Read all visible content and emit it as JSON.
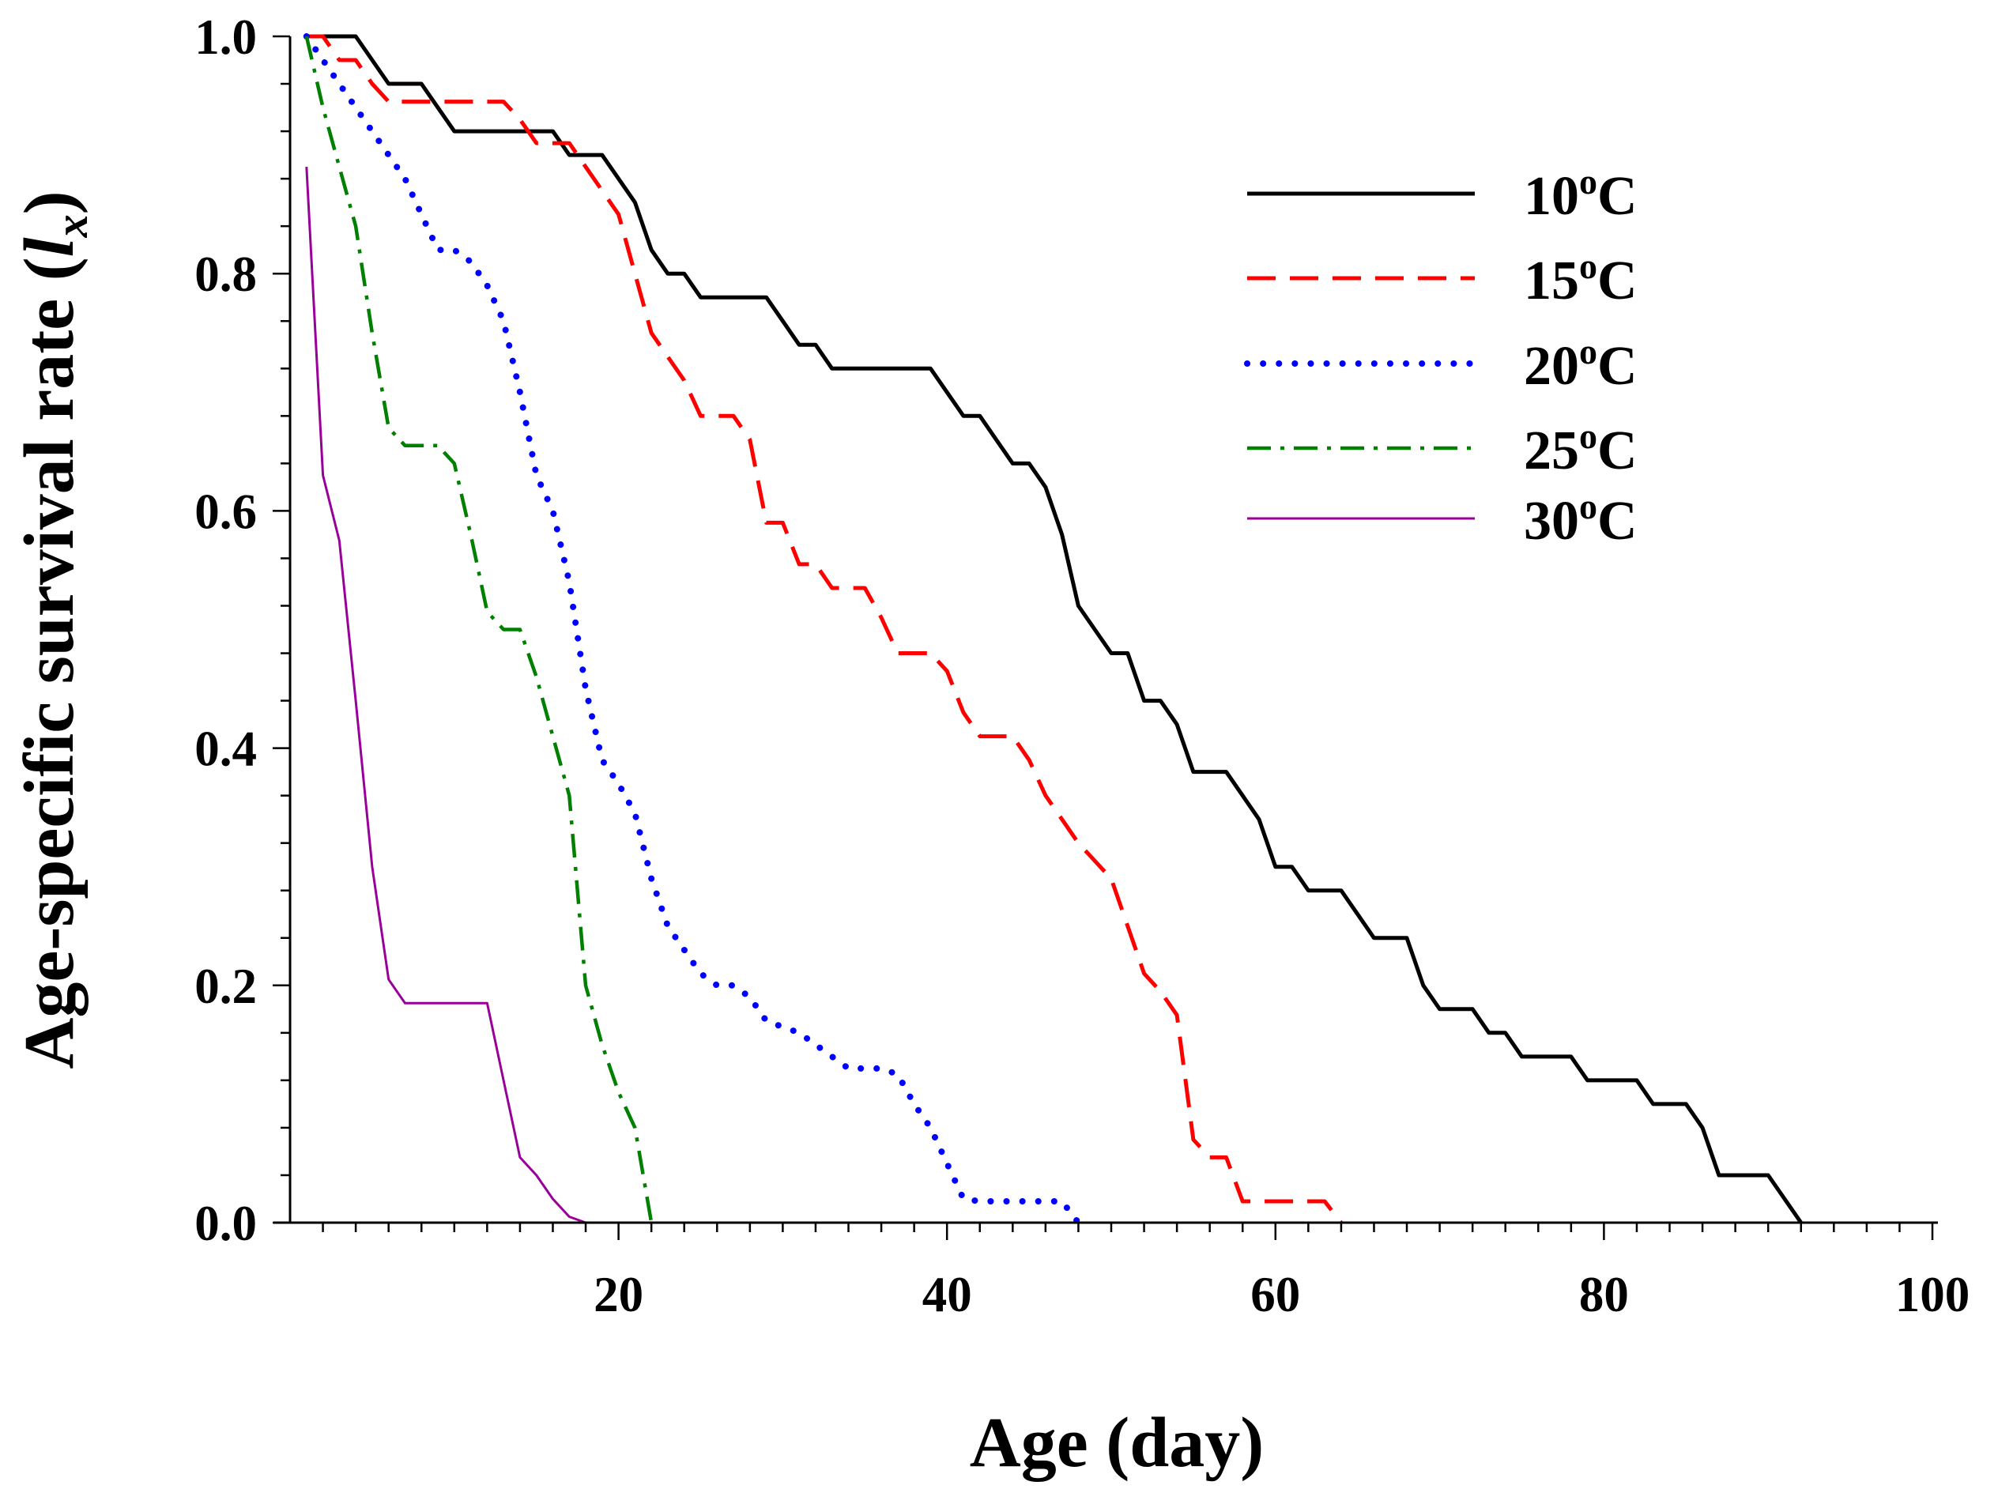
{
  "chart_data": {
    "type": "line",
    "title": "",
    "xlabel": "Age (day)",
    "ylabel_main": "Age-specific survival rate (",
    "ylabel_var": "l",
    "ylabel_sub": "x",
    "ylabel_end": ")",
    "xlim": [
      0,
      100
    ],
    "ylim": [
      0,
      1.0
    ],
    "xticks": [
      20,
      40,
      60,
      80,
      100
    ],
    "xtick_labels": [
      "20",
      "40",
      "60",
      "80",
      "100"
    ],
    "xminor_step": 2,
    "yticks": [
      0,
      0.2,
      0.4,
      0.6,
      0.8,
      1.0
    ],
    "ytick_labels": [
      "0.0",
      "0.2",
      "0.4",
      "0.6",
      "0.8",
      "1.0"
    ],
    "yminor_step": 0.04,
    "legend_position": "top-right",
    "series": [
      {
        "name": "10°C",
        "label_num": "10",
        "label_deg": "o",
        "label_unit": "C",
        "color": "#000000",
        "style": "solid",
        "x": [
          1,
          4,
          6,
          8,
          9,
          10,
          11,
          12,
          13,
          15,
          16,
          17,
          18,
          19,
          20,
          21,
          22,
          23,
          24,
          25,
          26,
          28,
          29,
          30,
          31,
          32,
          33,
          34,
          35,
          37,
          38,
          39,
          40,
          41,
          42,
          43,
          44,
          45,
          46,
          47,
          48,
          49,
          50,
          51,
          52,
          53,
          54,
          55,
          56,
          57,
          58,
          59,
          60,
          61,
          62,
          63,
          64,
          65,
          66,
          67,
          68,
          69,
          70,
          71,
          72,
          73,
          74,
          75,
          76,
          77,
          78,
          79,
          80,
          81,
          82,
          83,
          84,
          85,
          86,
          87,
          88,
          89,
          90,
          91,
          92
        ],
        "y": [
          1.0,
          1.0,
          0.96,
          0.96,
          0.94,
          0.92,
          0.92,
          0.92,
          0.92,
          0.92,
          0.92,
          0.9,
          0.9,
          0.9,
          0.88,
          0.86,
          0.82,
          0.8,
          0.8,
          0.78,
          0.78,
          0.78,
          0.78,
          0.76,
          0.74,
          0.74,
          0.72,
          0.72,
          0.72,
          0.72,
          0.72,
          0.72,
          0.7,
          0.68,
          0.68,
          0.66,
          0.64,
          0.64,
          0.62,
          0.58,
          0.52,
          0.5,
          0.48,
          0.48,
          0.44,
          0.44,
          0.42,
          0.38,
          0.38,
          0.38,
          0.36,
          0.34,
          0.3,
          0.3,
          0.28,
          0.28,
          0.28,
          0.26,
          0.24,
          0.24,
          0.24,
          0.2,
          0.18,
          0.18,
          0.18,
          0.16,
          0.16,
          0.14,
          0.14,
          0.14,
          0.14,
          0.12,
          0.12,
          0.12,
          0.12,
          0.1,
          0.1,
          0.1,
          0.08,
          0.04,
          0.04,
          0.04,
          0.04,
          0.02,
          0.0
        ]
      },
      {
        "name": "15°C",
        "label_num": "15",
        "label_deg": "o",
        "label_unit": "C",
        "color": "#ff0000",
        "style": "dashed",
        "x": [
          1,
          2,
          3,
          4,
          5,
          6,
          7,
          8,
          9,
          10,
          11,
          12,
          13,
          14,
          15,
          16,
          17,
          18,
          19,
          20,
          21,
          22,
          23,
          24,
          25,
          26,
          27,
          28,
          29,
          30,
          31,
          32,
          33,
          34,
          35,
          36,
          37,
          38,
          39,
          40,
          41,
          42,
          43,
          44,
          45,
          46,
          47,
          48,
          49,
          50,
          51,
          52,
          53,
          54,
          55,
          56,
          57,
          58,
          59,
          60,
          61,
          62,
          63,
          64
        ],
        "y": [
          1.0,
          1.0,
          0.98,
          0.98,
          0.96,
          0.945,
          0.945,
          0.945,
          0.945,
          0.945,
          0.945,
          0.945,
          0.945,
          0.93,
          0.91,
          0.91,
          0.91,
          0.89,
          0.87,
          0.85,
          0.8,
          0.75,
          0.73,
          0.71,
          0.68,
          0.68,
          0.68,
          0.66,
          0.59,
          0.59,
          0.555,
          0.555,
          0.535,
          0.535,
          0.535,
          0.51,
          0.48,
          0.48,
          0.48,
          0.465,
          0.43,
          0.41,
          0.41,
          0.41,
          0.39,
          0.36,
          0.34,
          0.32,
          0.305,
          0.29,
          0.25,
          0.21,
          0.195,
          0.175,
          0.07,
          0.055,
          0.055,
          0.018,
          0.018,
          0.018,
          0.018,
          0.018,
          0.018,
          0.0
        ]
      },
      {
        "name": "20°C",
        "label_num": "20",
        "label_deg": "o",
        "label_unit": "C",
        "color": "#0000ff",
        "style": "dotted",
        "x": [
          1,
          2,
          3,
          4,
          5,
          6,
          7,
          8,
          9,
          10,
          11,
          12,
          13,
          14,
          15,
          16,
          17,
          18,
          19,
          20,
          21,
          22,
          23,
          24,
          25,
          26,
          27,
          28,
          29,
          30,
          31,
          32,
          33,
          34,
          35,
          36,
          37,
          38,
          39,
          40,
          41,
          42,
          43,
          44,
          45,
          46,
          47,
          48
        ],
        "y": [
          1.0,
          0.98,
          0.96,
          0.94,
          0.92,
          0.9,
          0.88,
          0.85,
          0.82,
          0.82,
          0.81,
          0.79,
          0.76,
          0.7,
          0.63,
          0.6,
          0.54,
          0.45,
          0.39,
          0.37,
          0.345,
          0.29,
          0.25,
          0.23,
          0.21,
          0.2,
          0.2,
          0.19,
          0.17,
          0.165,
          0.16,
          0.15,
          0.14,
          0.13,
          0.13,
          0.13,
          0.125,
          0.1,
          0.08,
          0.05,
          0.02,
          0.018,
          0.018,
          0.018,
          0.018,
          0.018,
          0.018,
          0.0
        ]
      },
      {
        "name": "25°C",
        "label_num": "25",
        "label_deg": "o",
        "label_unit": "C",
        "color": "#008000",
        "style": "dashdot",
        "x": [
          1,
          2,
          3,
          4,
          5,
          6,
          7,
          8,
          9,
          10,
          11,
          12,
          13,
          14,
          15,
          16,
          17,
          18,
          19,
          20,
          21,
          22
        ],
        "y": [
          1.0,
          0.94,
          0.89,
          0.84,
          0.75,
          0.67,
          0.655,
          0.655,
          0.655,
          0.64,
          0.58,
          0.515,
          0.5,
          0.5,
          0.46,
          0.41,
          0.36,
          0.2,
          0.15,
          0.11,
          0.08,
          0.0
        ]
      },
      {
        "name": "30°C",
        "label_num": "30",
        "label_deg": "o",
        "label_unit": "C",
        "color": "#990099",
        "style": "solid-thin",
        "x": [
          1,
          2,
          3,
          4,
          5,
          6,
          7,
          8,
          9,
          10,
          11,
          12,
          13,
          14,
          15,
          16,
          17,
          18
        ],
        "y": [
          0.89,
          0.63,
          0.575,
          0.44,
          0.3,
          0.205,
          0.185,
          0.185,
          0.185,
          0.185,
          0.185,
          0.185,
          0.12,
          0.055,
          0.04,
          0.02,
          0.005,
          0.0
        ]
      }
    ]
  }
}
